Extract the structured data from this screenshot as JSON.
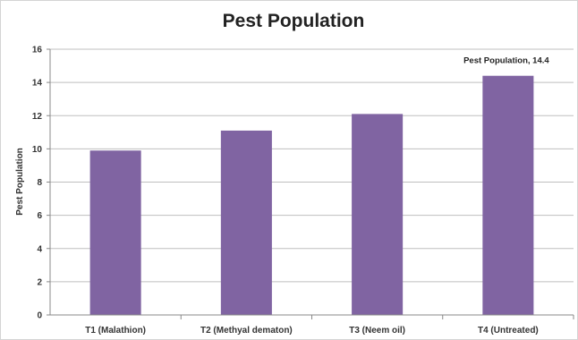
{
  "chart_data": {
    "type": "bar",
    "title": "Pest Population",
    "xlabel": "",
    "ylabel": "Pest Population",
    "categories": [
      "T1 (Malathion)",
      "T2 (Methyal dematon)",
      "T3 (Neem oil)",
      "T4 (Untreated)"
    ],
    "values": [
      9.9,
      11.1,
      12.1,
      14.4
    ],
    "ylim": [
      0,
      16
    ],
    "yticks": [
      "0",
      "2",
      "4",
      "6",
      "8",
      "10",
      "12",
      "14",
      "16"
    ],
    "grid": true,
    "legend": "none",
    "bar_color": "#8064a2",
    "annotations": [
      {
        "category_index": 3,
        "text": "Pest Population, 14.4"
      }
    ]
  }
}
